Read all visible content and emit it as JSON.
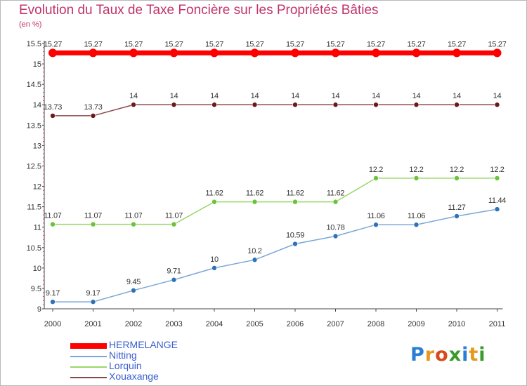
{
  "title": "Evolution du Taux de Taxe Foncière sur les Propriétés Bâties",
  "unit_label": "(en %)",
  "logo": {
    "text": "Proxiti",
    "letters": [
      {
        "char": "P",
        "color": "#2a7fd4"
      },
      {
        "char": "r",
        "color": "#e59a1f"
      },
      {
        "char": "o",
        "color": "#d94a1a"
      },
      {
        "char": "x",
        "color": "#3a9a2a"
      },
      {
        "char": "i",
        "color": "#2a7fd4"
      },
      {
        "char": "t",
        "color": "#e59a1f"
      },
      {
        "char": "i",
        "color": "#3a9a2a"
      }
    ]
  },
  "chart_data": {
    "type": "line",
    "title": "Evolution du Taux de Taxe Foncière sur les Propriétés Bâties",
    "ylabel": "(en %)",
    "xlabel": "",
    "ylim": [
      9,
      15.5
    ],
    "yticks": [
      "9",
      "9.5",
      "10",
      "10.5",
      "11",
      "11.5",
      "12",
      "12.5",
      "13",
      "13.5",
      "14",
      "14.5",
      "15",
      "15.5"
    ],
    "categories": [
      "2000",
      "2001",
      "2002",
      "2003",
      "2004",
      "2005",
      "2006",
      "2007",
      "2008",
      "2009",
      "2010",
      "2011"
    ],
    "legend_position": "bottom-left",
    "series": [
      {
        "name": "HERMELANGE",
        "color": "#ff0000",
        "marker_color": "#ff0000",
        "thick": true,
        "values": [
          15.27,
          15.27,
          15.27,
          15.27,
          15.27,
          15.27,
          15.27,
          15.27,
          15.27,
          15.27,
          15.27,
          15.27
        ],
        "labels": [
          "15.27",
          "15.27",
          "15.27",
          "15.27",
          "15.27",
          "15.27",
          "15.27",
          "15.27",
          "15.27",
          "15.27",
          "15.27",
          "15.27"
        ]
      },
      {
        "name": "Nitting",
        "color": "#7ba7d6",
        "marker_color": "#2f72b8",
        "thick": false,
        "values": [
          9.17,
          9.17,
          9.45,
          9.71,
          10,
          10.2,
          10.59,
          10.78,
          11.06,
          11.06,
          11.27,
          11.44
        ],
        "labels": [
          "9.17",
          "9.17",
          "9.45",
          "9.71",
          "10",
          "10.2",
          "10.59",
          "10.78",
          "11.06",
          "11.06",
          "11.27",
          "11.44"
        ]
      },
      {
        "name": "Lorquin",
        "color": "#9ad66a",
        "marker_color": "#6cc23a",
        "thick": false,
        "values": [
          11.07,
          11.07,
          11.07,
          11.07,
          11.62,
          11.62,
          11.62,
          11.62,
          12.2,
          12.2,
          12.2,
          12.2
        ],
        "labels": [
          "11.07",
          "11.07",
          "11.07",
          "11.07",
          "11.62",
          "11.62",
          "11.62",
          "11.62",
          "12.2",
          "12.2",
          "12.2",
          "12.2"
        ]
      },
      {
        "name": "Xouaxange",
        "color": "#8a4848",
        "marker_color": "#6b1a1a",
        "thick": false,
        "values": [
          13.73,
          13.73,
          14,
          14,
          14,
          14,
          14,
          14,
          14,
          14,
          14,
          14
        ],
        "labels": [
          "13.73",
          "13.73",
          "14",
          "14",
          "14",
          "14",
          "14",
          "14",
          "14",
          "14",
          "14",
          "14"
        ]
      }
    ]
  }
}
